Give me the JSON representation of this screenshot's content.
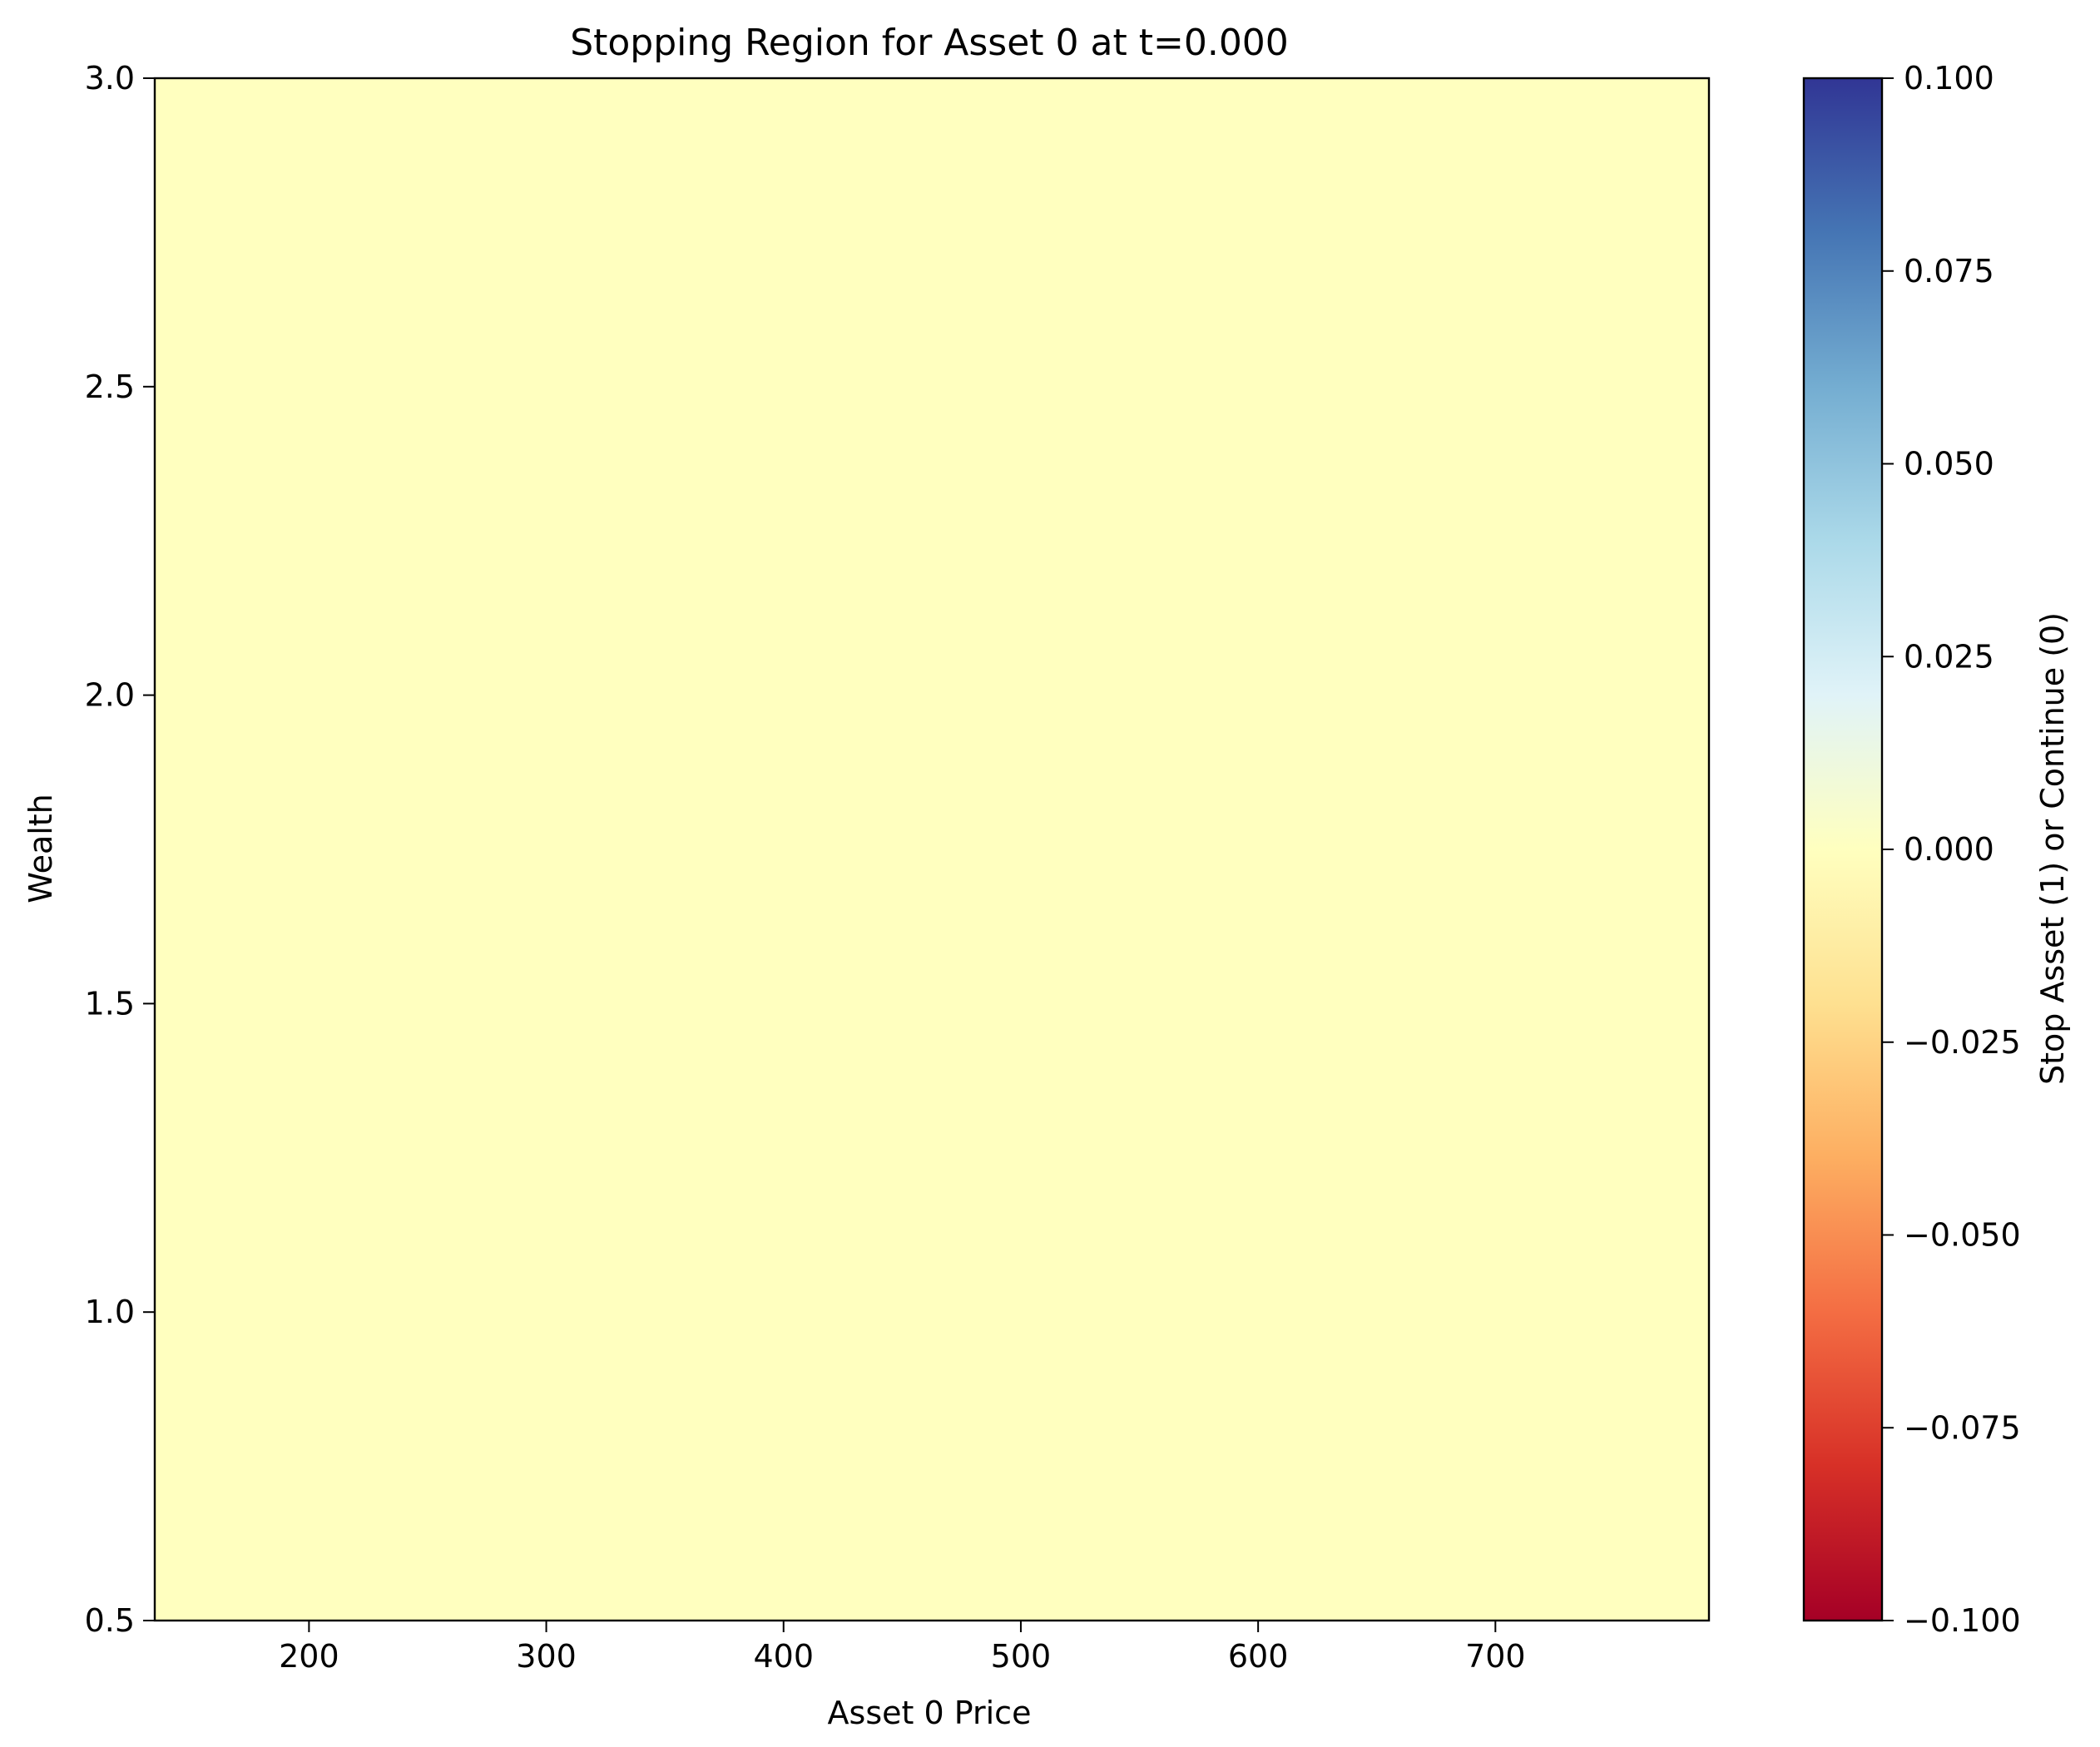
{
  "chart_data": {
    "type": "heatmap",
    "title": "Stopping Region for Asset 0 at t=0.000",
    "xlabel": "Asset 0 Price",
    "ylabel": "Wealth",
    "xlim": [
      135,
      790
    ],
    "ylim": [
      0.5,
      3.0
    ],
    "xticks": [
      200,
      300,
      400,
      500,
      600,
      700
    ],
    "xtick_labels": [
      "200",
      "300",
      "400",
      "500",
      "600",
      "700"
    ],
    "yticks": [
      0.5,
      1.0,
      1.5,
      2.0,
      2.5,
      3.0
    ],
    "ytick_labels": [
      "0.5",
      "1.0",
      "1.5",
      "2.0",
      "2.5",
      "3.0"
    ],
    "grid": false,
    "cells": [
      {
        "x_range": [
          135,
          790
        ],
        "y_range": [
          0.5,
          3.0
        ],
        "value": 0.0
      }
    ],
    "colorbar": {
      "label": "Stop Asset (1) or Continue (0)",
      "colormap": "RdYlBu",
      "range": [
        -0.1,
        0.1
      ],
      "ticks": [
        -0.1,
        -0.075,
        -0.05,
        -0.025,
        0.0,
        0.025,
        0.05,
        0.075,
        0.1
      ],
      "tick_labels": [
        "−0.100",
        "−0.075",
        "−0.050",
        "−0.025",
        "0.000",
        "0.025",
        "0.050",
        "0.075",
        "0.100"
      ],
      "colors": [
        "#a50026",
        "#d73027",
        "#f46d43",
        "#fdae61",
        "#fee090",
        "#ffffbf",
        "#e0f3f8",
        "#abd9e9",
        "#74add1",
        "#4575b4",
        "#313695"
      ]
    }
  }
}
